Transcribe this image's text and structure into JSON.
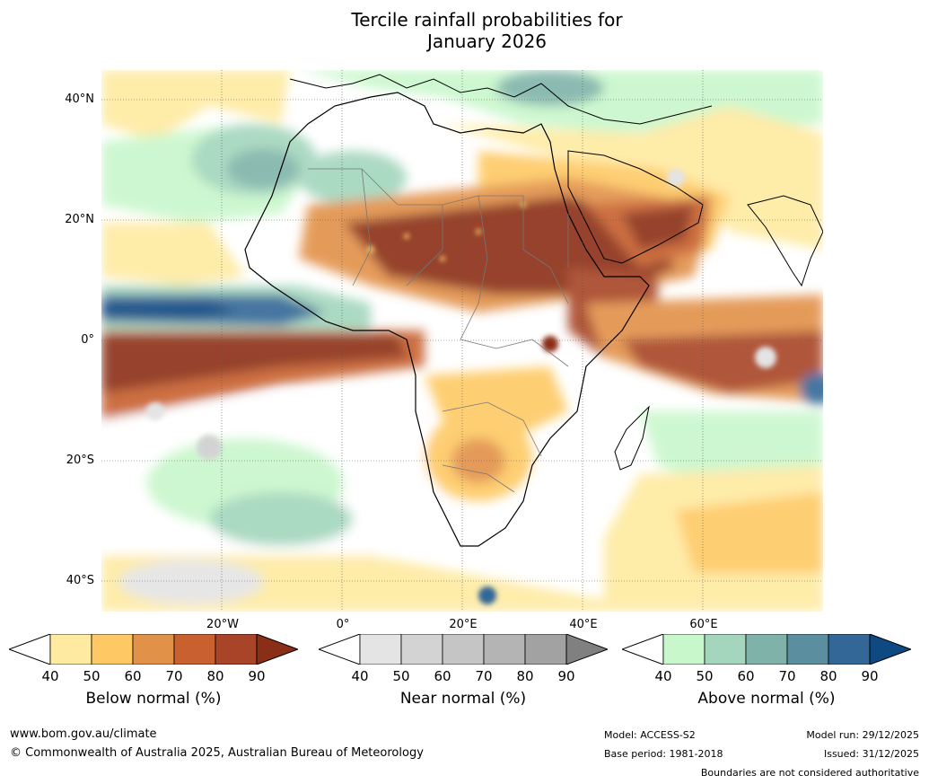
{
  "title": {
    "line1": "Tercile rainfall probabilities for",
    "line2": "January 2026"
  },
  "map": {
    "region": "Africa",
    "lat_labels": [
      "40°N",
      "20°N",
      "0°",
      "20°S",
      "40°S"
    ],
    "lon_labels": [
      "20°W",
      "0°",
      "20°E",
      "40°E",
      "60°E"
    ]
  },
  "legends": [
    {
      "label": "Below normal (%)",
      "ticks": [
        "40",
        "50",
        "60",
        "70",
        "80",
        "90"
      ],
      "colors": [
        "#ffffff",
        "#feeaa0",
        "#fec964",
        "#e29148",
        "#c8602f",
        "#a84428",
        "#8b2e18"
      ]
    },
    {
      "label": "Near normal (%)",
      "ticks": [
        "40",
        "50",
        "60",
        "70",
        "80",
        "90"
      ],
      "colors": [
        "#ffffff",
        "#e4e4e4",
        "#d3d3d3",
        "#c5c5c5",
        "#b4b4b4",
        "#a2a2a2",
        "#808080"
      ]
    },
    {
      "label": "Above normal (%)",
      "ticks": [
        "40",
        "50",
        "60",
        "70",
        "80",
        "90"
      ],
      "colors": [
        "#ffffff",
        "#c8f7cb",
        "#a3d6bc",
        "#7fb3a9",
        "#5b8fa0",
        "#336797",
        "#0f4982"
      ]
    }
  ],
  "footer": {
    "website": "www.bom.gov.au/climate",
    "copyright": "© Commonwealth of Australia 2025, Australian Bureau of Meteorology",
    "model": "Model: ACCESS-S2",
    "base_period": "Base period: 1981-2018",
    "model_run": "Model run: 29/12/2025",
    "issued": "Issued: 31/12/2025",
    "disclaimer": "Boundaries are not considered authoritative"
  }
}
